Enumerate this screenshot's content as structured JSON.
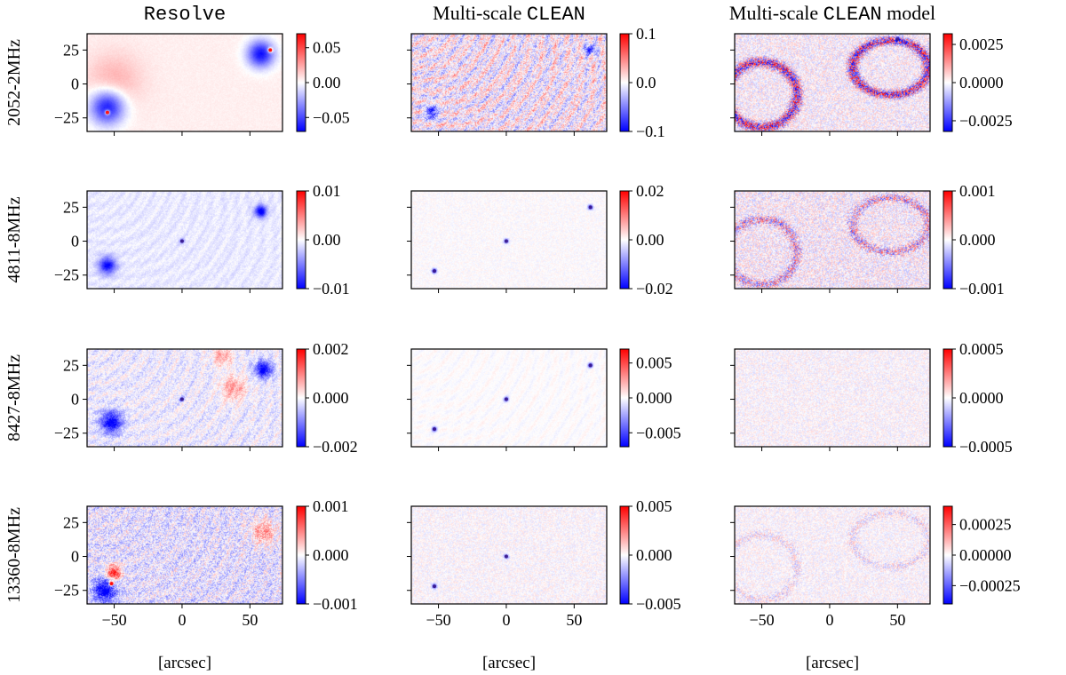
{
  "chart_data": {
    "type": "heatmap",
    "colormap": "bwr",
    "colormap_colors": {
      "low": "#0000ff",
      "mid": "#ffffff",
      "high": "#ff0000"
    },
    "column_titles": [
      {
        "parts": [
          {
            "text": "Resolve",
            "mono": true
          }
        ]
      },
      {
        "parts": [
          {
            "text": "Multi-scale ",
            "mono": false
          },
          {
            "text": "CLEAN",
            "mono": true
          }
        ]
      },
      {
        "parts": [
          {
            "text": "Multi-scale ",
            "mono": false
          },
          {
            "text": "CLEAN",
            "mono": true
          },
          {
            "text": " model",
            "mono": false
          }
        ]
      }
    ],
    "row_labels": [
      "2052-2MHz",
      "4811-8MHz",
      "8427-8MHz",
      "13360-8MHz"
    ],
    "xlabel": "[arcsec]",
    "xlim": [
      -70,
      74
    ],
    "ylim": [
      -35,
      37
    ],
    "xticks": [
      -50,
      0,
      50
    ],
    "xtick_labels": [
      "−50",
      "0",
      "50"
    ],
    "yticks": [
      25,
      0,
      -25
    ],
    "ytick_labels": [
      "25",
      "0",
      "−25"
    ],
    "colorbars": [
      [
        {
          "vmin": -0.07,
          "vmax": 0.07,
          "ticks": [
            {
              "v": 0.05,
              "label": "0.05"
            },
            {
              "v": 0.0,
              "label": "0.00"
            },
            {
              "v": -0.05,
              "label": "−0.05"
            }
          ]
        },
        {
          "vmin": -0.1,
          "vmax": 0.1,
          "ticks": [
            {
              "v": 0.1,
              "label": "0.1"
            },
            {
              "v": 0.0,
              "label": "0.0"
            },
            {
              "v": -0.1,
              "label": "−0.1"
            }
          ]
        },
        {
          "vmin": -0.0032,
          "vmax": 0.0032,
          "ticks": [
            {
              "v": 0.0025,
              "label": "0.0025"
            },
            {
              "v": 0.0,
              "label": "0.0000"
            },
            {
              "v": -0.0025,
              "label": "−0.0025"
            }
          ]
        }
      ],
      [
        {
          "vmin": -0.01,
          "vmax": 0.01,
          "ticks": [
            {
              "v": 0.01,
              "label": "0.01"
            },
            {
              "v": 0.0,
              "label": "0.00"
            },
            {
              "v": -0.01,
              "label": "−0.01"
            }
          ]
        },
        {
          "vmin": -0.02,
          "vmax": 0.02,
          "ticks": [
            {
              "v": 0.02,
              "label": "0.02"
            },
            {
              "v": 0.0,
              "label": "0.00"
            },
            {
              "v": -0.02,
              "label": "−0.02"
            }
          ]
        },
        {
          "vmin": -0.001,
          "vmax": 0.001,
          "ticks": [
            {
              "v": 0.001,
              "label": "0.001"
            },
            {
              "v": 0.0,
              "label": "0.000"
            },
            {
              "v": -0.001,
              "label": "−0.001"
            }
          ]
        }
      ],
      [
        {
          "vmin": -0.002,
          "vmax": 0.002,
          "ticks": [
            {
              "v": 0.002,
              "label": "0.002"
            },
            {
              "v": 0.0,
              "label": "0.000"
            },
            {
              "v": -0.002,
              "label": "−0.002"
            }
          ]
        },
        {
          "vmin": -0.007,
          "vmax": 0.007,
          "ticks": [
            {
              "v": 0.005,
              "label": "0.005"
            },
            {
              "v": 0.0,
              "label": "0.000"
            },
            {
              "v": -0.005,
              "label": "−0.005"
            }
          ]
        },
        {
          "vmin": -0.0005,
          "vmax": 0.0005,
          "ticks": [
            {
              "v": 0.0005,
              "label": "0.0005"
            },
            {
              "v": 0.0,
              "label": "0.0000"
            },
            {
              "v": -0.0005,
              "label": "−0.0005"
            }
          ]
        }
      ],
      [
        {
          "vmin": -0.001,
          "vmax": 0.001,
          "ticks": [
            {
              "v": 0.001,
              "label": "0.001"
            },
            {
              "v": 0.0,
              "label": "0.000"
            },
            {
              "v": -0.001,
              "label": "−0.001"
            }
          ]
        },
        {
          "vmin": -0.005,
          "vmax": 0.005,
          "ticks": [
            {
              "v": 0.005,
              "label": "0.005"
            },
            {
              "v": 0.0,
              "label": "0.000"
            },
            {
              "v": -0.005,
              "label": "−0.005"
            }
          ]
        },
        {
          "vmin": -0.0004,
          "vmax": 0.0004,
          "ticks": [
            {
              "v": 0.00025,
              "label": "0.00025"
            },
            {
              "v": 0.0,
              "label": "0.00000"
            },
            {
              "v": -0.00025,
              "label": "−0.00025"
            }
          ]
        }
      ]
    ],
    "features": {
      "sources": [
        {
          "label": "source-south",
          "x": -53,
          "y": -18
        },
        {
          "label": "source-north",
          "x": 58,
          "y": 22
        },
        {
          "label": "core",
          "x": 0,
          "y": 0
        }
      ],
      "panels": [
        [
          {
            "bg": 0.06,
            "noise": 0.05,
            "blobs": [
              {
                "x": -55,
                "y": -17,
                "r": 14,
                "a": -1.0
              },
              {
                "x": 58,
                "y": 22,
                "r": 11,
                "a": -1.0
              },
              {
                "x": -50,
                "y": 2,
                "r": 22,
                "a": 0.25
              }
            ],
            "dots": [
              {
                "x": -55,
                "y": -21,
                "a": 1.0
              },
              {
                "x": 65,
                "y": 25,
                "a": 1.0
              }
            ]
          },
          {
            "bg": 0.0,
            "noise": 0.55,
            "ripple": 0.45,
            "blobs": [
              {
                "x": -55,
                "y": -21,
                "r": 5,
                "a": -0.9
              },
              {
                "x": 62,
                "y": 25,
                "r": 4,
                "a": -0.9
              }
            ],
            "dots": []
          },
          {
            "bg": 0.0,
            "noise": 0.4,
            "ring": 0.9,
            "blobs": [],
            "dots": [
              {
                "x": 50,
                "y": 33,
                "a": -1.0
              }
            ]
          }
        ],
        [
          {
            "bg": -0.08,
            "noise": 0.12,
            "ripple": 0.1,
            "blobs": [
              {
                "x": -55,
                "y": -18,
                "r": 7,
                "a": -0.9
              },
              {
                "x": 58,
                "y": 22,
                "r": 5,
                "a": -1.0
              }
            ],
            "dots": [
              {
                "x": 0,
                "y": 0,
                "a": -0.6
              }
            ]
          },
          {
            "bg": 0.0,
            "noise": 0.12,
            "blobs": [],
            "dots": [
              {
                "x": -53,
                "y": -22,
                "a": -1.0
              },
              {
                "x": 62,
                "y": 25,
                "a": -1.0
              },
              {
                "x": 0,
                "y": 0,
                "a": -0.8
              }
            ]
          },
          {
            "bg": 0.0,
            "noise": 0.45,
            "ring": 0.5,
            "blobs": [],
            "dots": []
          }
        ],
        [
          {
            "bg": -0.06,
            "noise": 0.3,
            "ripple": 0.2,
            "blobs": [
              {
                "x": -52,
                "y": -17,
                "r": 9,
                "a": -1.0
              },
              {
                "x": 60,
                "y": 22,
                "r": 7,
                "a": -1.0
              },
              {
                "x": 38,
                "y": 8,
                "r": 10,
                "a": 0.45
              },
              {
                "x": 30,
                "y": 32,
                "r": 8,
                "a": 0.4
              }
            ],
            "dots": [
              {
                "x": 0,
                "y": 0,
                "a": -0.7
              }
            ]
          },
          {
            "bg": 0.0,
            "noise": 0.06,
            "ripple": 0.08,
            "blobs": [],
            "dots": [
              {
                "x": -53,
                "y": -22,
                "a": -1.0
              },
              {
                "x": 62,
                "y": 25,
                "a": -1.0
              },
              {
                "x": 0,
                "y": 0,
                "a": -0.8
              }
            ]
          },
          {
            "bg": 0.0,
            "noise": 0.25,
            "blobs": [],
            "dots": []
          }
        ],
        [
          {
            "bg": -0.1,
            "noise": 0.5,
            "ripple": 0.2,
            "blobs": [
              {
                "x": -57,
                "y": -25,
                "r": 9,
                "a": -1.0
              },
              {
                "x": -50,
                "y": -12,
                "r": 6,
                "a": 1.0
              },
              {
                "x": 60,
                "y": 18,
                "r": 10,
                "a": 0.5
              }
            ],
            "dots": [
              {
                "x": -52,
                "y": -20,
                "a": 1.0
              }
            ]
          },
          {
            "bg": 0.0,
            "noise": 0.22,
            "blobs": [],
            "dots": [
              {
                "x": -53,
                "y": -22,
                "a": -0.9
              },
              {
                "x": 0,
                "y": 0,
                "a": -0.7
              }
            ]
          },
          {
            "bg": 0.0,
            "noise": 0.25,
            "ring": 0.2,
            "blobs": [],
            "dots": []
          }
        ]
      ]
    }
  }
}
